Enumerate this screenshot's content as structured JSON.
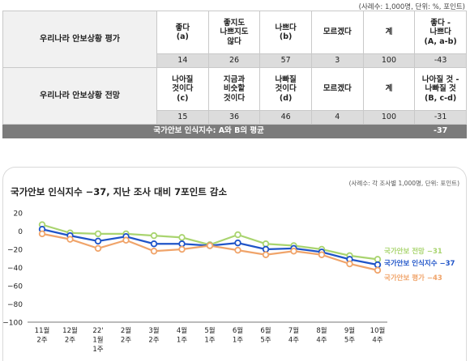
{
  "note": "(사례수: 1,000명, 단위: %, 포인트)",
  "table": {
    "row1": {
      "label": "우리나라 안보상황 평가",
      "headers": [
        "좋다\n(a)",
        "좋지도\n나쁘지도\n않다",
        "나쁘다\n(b)",
        "모르겠다",
        "계",
        "좋다 -\n나쁘다\n(A, a-b)"
      ],
      "values": [
        "14",
        "26",
        "57",
        "3",
        "100",
        "-43"
      ]
    },
    "row2": {
      "label": "우리나라 안보상황 전망",
      "headers": [
        "나아질\n것이다\n(c)",
        "지금과\n비슷할\n것이다",
        "나빠질\n것이다\n(d)",
        "모르겠다",
        "계",
        "나아질 것 -\n나빠질 것\n(B, c-d)"
      ],
      "values": [
        "15",
        "36",
        "46",
        "4",
        "100",
        "-31"
      ]
    },
    "footer": {
      "label": "국가안보 인식지수: A와 B의 평균",
      "value": "-37"
    }
  },
  "chart_data": {
    "type": "line",
    "title": "국가안보 인식지수 −37, 지난 조사 대비 7포인트 감소",
    "note": "(사례수: 각 조사별 1,000명, 단위: 포인트)",
    "xlabel": "",
    "ylabel": "",
    "ylim": [
      -100,
      20
    ],
    "yticks": [
      20,
      0,
      -20,
      -40,
      -60,
      -80,
      -100
    ],
    "grid": false,
    "categories": [
      [
        "11월",
        "2주"
      ],
      [
        "12월",
        "2주"
      ],
      [
        "22'",
        "1월",
        "1주"
      ],
      [
        "2월",
        "2주"
      ],
      [
        "3월",
        "2주"
      ],
      [
        "4월",
        "1주"
      ],
      [
        "5월",
        "1주"
      ],
      [
        "6월",
        "1주"
      ],
      [
        "6월",
        "5주"
      ],
      [
        "7월",
        "4주"
      ],
      [
        "8월",
        "4주"
      ],
      [
        "9월",
        "5주"
      ],
      [
        "10월",
        "4주"
      ]
    ],
    "series": [
      {
        "name": "국가안보 전망 −31",
        "color": "#a9d46f",
        "values": [
          7,
          -2,
          -3,
          -3,
          -5,
          -7,
          -15,
          -4,
          -14,
          -16,
          -20,
          -27,
          -31
        ]
      },
      {
        "name": "국가안보 인식지수 −37",
        "color": "#1f54c8",
        "values": [
          2,
          -5,
          -11,
          -6,
          -14,
          -14,
          -16,
          -13,
          -20,
          -19,
          -23,
          -31,
          -37
        ]
      },
      {
        "name": "국가안보 평가 −43",
        "color": "#f0a46a",
        "values": [
          -3,
          -9,
          -19,
          -10,
          -22,
          -20,
          -16,
          -21,
          -26,
          -22,
          -26,
          -36,
          -43
        ]
      }
    ]
  }
}
